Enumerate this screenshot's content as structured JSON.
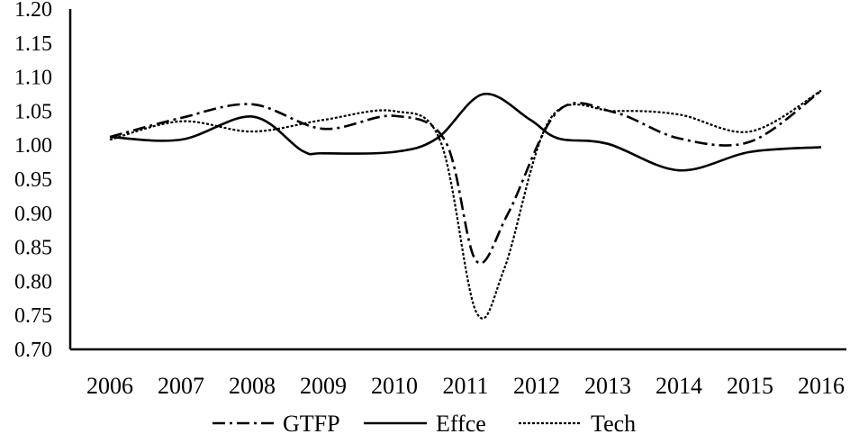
{
  "chart_data": {
    "type": "line",
    "title": "",
    "xlabel": "",
    "ylabel": "",
    "categories": [
      "2006",
      "2007",
      "2008",
      "2009",
      "2010",
      "2011",
      "2012",
      "2013",
      "2014",
      "2015",
      "2016"
    ],
    "ylim": [
      0.7,
      1.2
    ],
    "yticks": [
      "0.70",
      "0.75",
      "0.80",
      "0.85",
      "0.90",
      "0.95",
      "1.00",
      "1.05",
      "1.10",
      "1.15",
      "1.20"
    ],
    "grid": false,
    "legend_position": "bottom",
    "series": [
      {
        "name": "GTFP",
        "dash": "dashdot",
        "color": "#000000",
        "points": [
          [
            0,
            1.012
          ],
          [
            1,
            1.04
          ],
          [
            2,
            1.06
          ],
          [
            3,
            1.024
          ],
          [
            4,
            1.043
          ],
          [
            4.72,
            1.005
          ],
          [
            5.15,
            0.83
          ],
          [
            5.6,
            0.9
          ],
          [
            6.3,
            1.05
          ],
          [
            7.1,
            1.048
          ],
          [
            8,
            1.01
          ],
          [
            9,
            1.005
          ],
          [
            10,
            1.08
          ]
        ]
      },
      {
        "name": "Effce",
        "dash": "solid",
        "color": "#000000",
        "points": [
          [
            0,
            1.012
          ],
          [
            1,
            1.008
          ],
          [
            2,
            1.042
          ],
          [
            2.7,
            0.992
          ],
          [
            3,
            0.988
          ],
          [
            4,
            0.99
          ],
          [
            4.6,
            1.01
          ],
          [
            5.25,
            1.075
          ],
          [
            5.9,
            1.038
          ],
          [
            6.3,
            1.01
          ],
          [
            7,
            1.002
          ],
          [
            8,
            0.963
          ],
          [
            9,
            0.99
          ],
          [
            10,
            0.997
          ]
        ]
      },
      {
        "name": "Tech",
        "dash": "dotted",
        "color": "#000000",
        "points": [
          [
            0,
            1.008
          ],
          [
            1,
            1.035
          ],
          [
            2,
            1.02
          ],
          [
            3,
            1.037
          ],
          [
            4,
            1.05
          ],
          [
            4.65,
            1.005
          ],
          [
            5.15,
            0.755
          ],
          [
            5.55,
            0.82
          ],
          [
            6.2,
            1.04
          ],
          [
            7.1,
            1.05
          ],
          [
            8,
            1.045
          ],
          [
            9,
            1.02
          ],
          [
            10,
            1.08
          ]
        ]
      }
    ]
  }
}
